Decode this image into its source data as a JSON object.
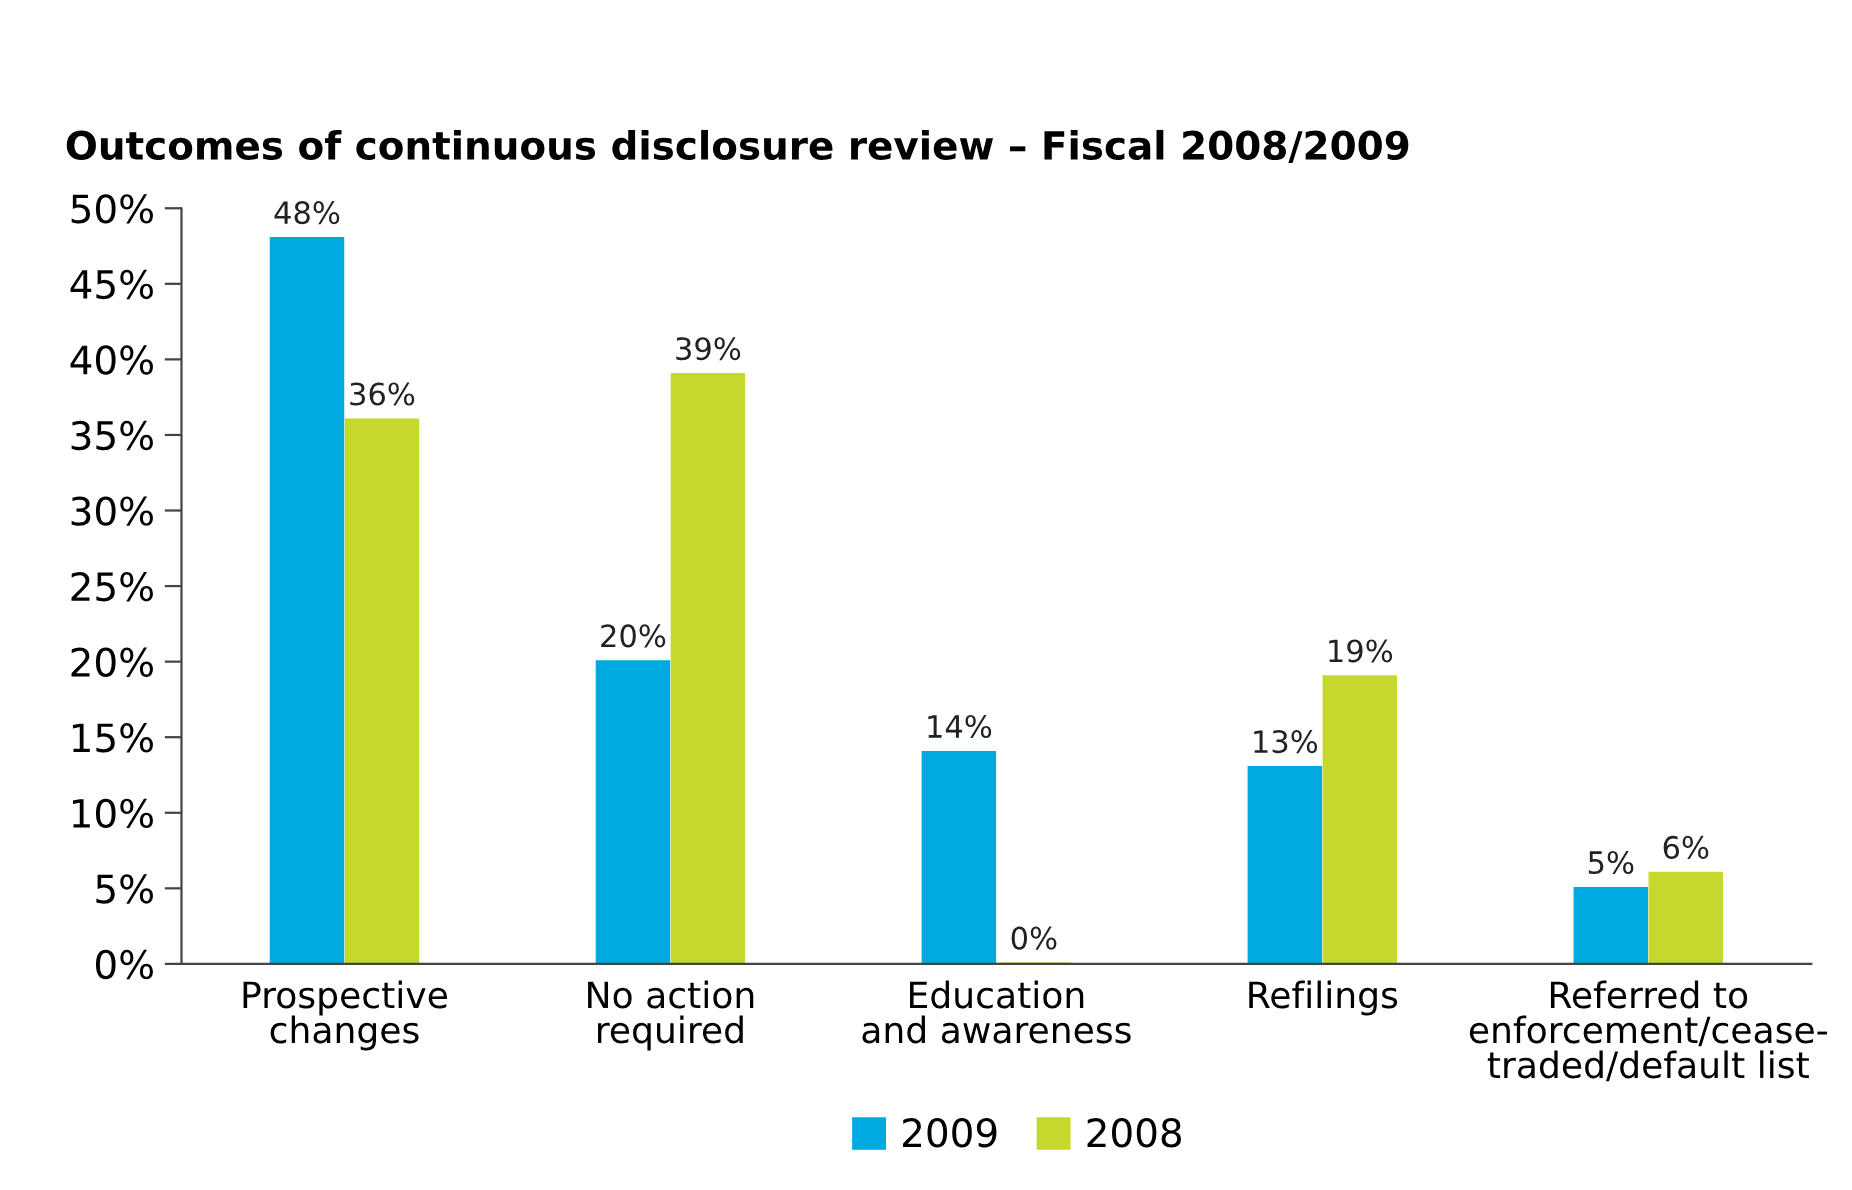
{
  "chart_data": {
    "type": "bar",
    "title": "Outcomes of continuous disclosure review – Fiscal 2008/2009",
    "categories": [
      "Prospective\nchanges",
      "No action\nrequired",
      "Education\nand awareness",
      "Refilings",
      "Referred to\nenforcement/cease-\ntraded/default list"
    ],
    "series": [
      {
        "name": "2009",
        "color": "#00a9e0",
        "values": [
          48,
          20,
          14,
          13,
          5
        ],
        "value_labels": [
          "48%",
          "20%",
          "14%",
          "13%",
          "5%"
        ]
      },
      {
        "name": "2008",
        "color": "#c4d82e",
        "values": [
          36,
          39,
          0,
          19,
          6
        ],
        "value_labels": [
          "36%",
          "39%",
          "0%",
          "19%",
          "6%"
        ]
      }
    ],
    "ylim": [
      0,
      50
    ],
    "yticks": [
      {
        "value": 0,
        "label": "0%"
      },
      {
        "value": 5,
        "label": "5%"
      },
      {
        "value": 10,
        "label": "10%"
      },
      {
        "value": 15,
        "label": "15%"
      },
      {
        "value": 20,
        "label": "20%"
      },
      {
        "value": 25,
        "label": "25%"
      },
      {
        "value": 30,
        "label": "30%"
      },
      {
        "value": 35,
        "label": "35%"
      },
      {
        "value": 40,
        "label": "40%"
      },
      {
        "value": 45,
        "label": "45%"
      },
      {
        "value": 50,
        "label": "50%"
      }
    ],
    "grid": false,
    "legend": "bottom"
  }
}
